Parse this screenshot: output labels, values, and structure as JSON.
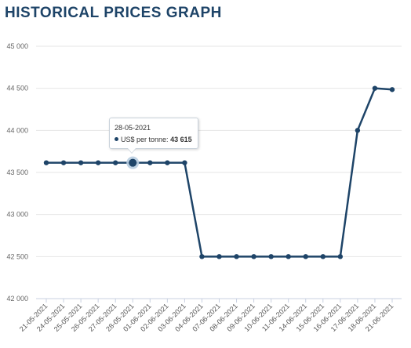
{
  "page": {
    "title": "HISTORICAL PRICES GRAPH"
  },
  "chart_data": {
    "type": "line",
    "title": "HISTORICAL PRICES GRAPH",
    "xlabel": "",
    "ylabel": "",
    "categories": [
      "21-05-2021",
      "24-05-2021",
      "25-05-2021",
      "26-05-2021",
      "27-05-2021",
      "28-05-2021",
      "01-06-2021",
      "02-06-2021",
      "03-06-2021",
      "04-06-2021",
      "07-06-2021",
      "08-06-2021",
      "09-06-2021",
      "10-06-2021",
      "11-06-2021",
      "14-06-2021",
      "15-06-2021",
      "16-06-2021",
      "17-06-2021",
      "18-06-2021",
      "21-06-2021"
    ],
    "series": [
      {
        "values": [
          43615,
          43615,
          43615,
          43615,
          43615,
          43615,
          43615,
          43615,
          43615,
          42500,
          42500,
          42500,
          42500,
          42500,
          42500,
          42500,
          42500,
          42500,
          44000,
          44500,
          44485
        ]
      }
    ],
    "ylim": [
      42000,
      45000
    ],
    "yticks": [
      42000,
      42500,
      43000,
      43500,
      44000,
      44500,
      45000
    ],
    "ytick_labels": [
      "42 000",
      "42 500",
      "43 000",
      "43 500",
      "44 000",
      "44 500",
      "45 000"
    ],
    "grid": true,
    "colors": {
      "line": "#1e4468",
      "highlight": "#b8cde0",
      "grid": "#e6e6e6",
      "title": "#1e4468"
    },
    "tooltip": {
      "date": "28-05-2021",
      "label": "US$ per tonne:",
      "value": "43 615",
      "marker_icon": "circle-marker-icon"
    },
    "highlight_index": 5
  }
}
